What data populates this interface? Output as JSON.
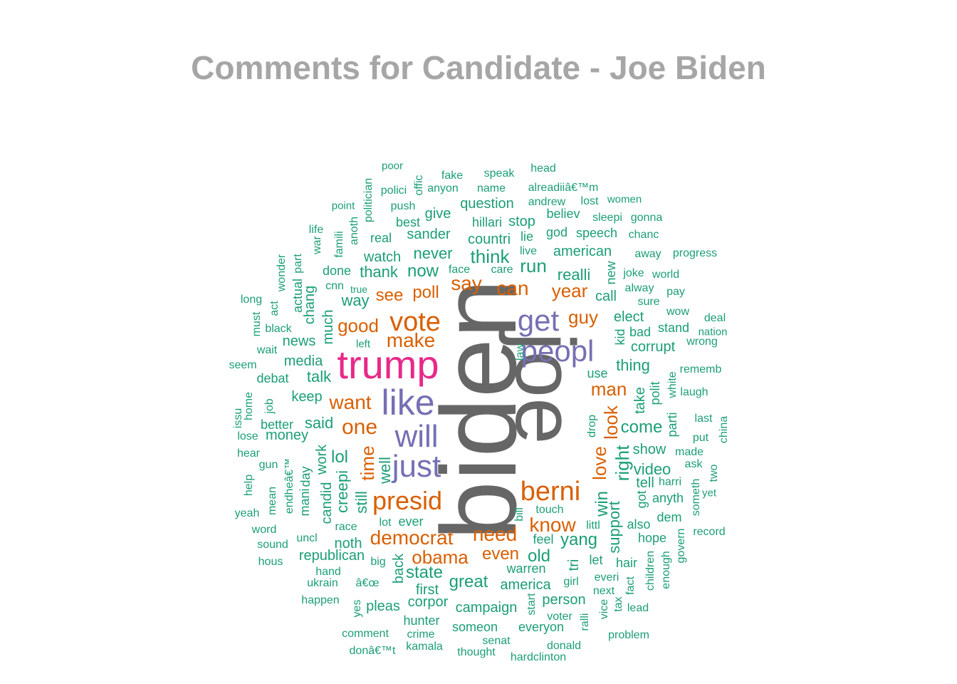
{
  "title": "Comments for Candidate - Joe Biden",
  "colors": {
    "green": "#1b9e77",
    "orange": "#d95f02",
    "purple": "#7570b3",
    "pink": "#e7298a",
    "gray": "#666666",
    "title": "#a6a6a6"
  },
  "words": [
    {
      "text": "biden",
      "c": "gray",
      "s": 150,
      "r": -90
    },
    {
      "text": "joe",
      "c": "gray",
      "s": 118,
      "r": 90
    },
    {
      "text": "trump",
      "c": "pink",
      "s": 56,
      "r": 0
    },
    {
      "text": "like",
      "c": "purple",
      "s": 50,
      "r": 0
    },
    {
      "text": "will",
      "c": "purple",
      "s": 44,
      "r": 0
    },
    {
      "text": "just",
      "c": "purple",
      "s": 44,
      "r": 0
    },
    {
      "text": "peopl",
      "c": "purple",
      "s": 42,
      "r": 0
    },
    {
      "text": "get",
      "c": "purple",
      "s": 42,
      "r": 0
    },
    {
      "text": "vote",
      "c": "orange",
      "s": 38,
      "r": 0
    },
    {
      "text": "berni",
      "c": "orange",
      "s": 38,
      "r": 0
    },
    {
      "text": "presid",
      "c": "orange",
      "s": 36,
      "r": 0
    },
    {
      "text": "make",
      "c": "orange",
      "s": 28,
      "r": 0
    },
    {
      "text": "one",
      "c": "orange",
      "s": 30,
      "r": 0
    },
    {
      "text": "want",
      "c": "orange",
      "s": 28,
      "r": 0
    },
    {
      "text": "good",
      "c": "orange",
      "s": 26,
      "r": 0
    },
    {
      "text": "democrat",
      "c": "orange",
      "s": 28,
      "r": 0
    },
    {
      "text": "say",
      "c": "orange",
      "s": 28,
      "r": 0
    },
    {
      "text": "can",
      "c": "orange",
      "s": 28,
      "r": 0
    },
    {
      "text": "know",
      "c": "orange",
      "s": 28,
      "r": 0
    },
    {
      "text": "need",
      "c": "orange",
      "s": 28,
      "r": 0
    },
    {
      "text": "obama",
      "c": "orange",
      "s": 26,
      "r": 0
    },
    {
      "text": "year",
      "c": "orange",
      "s": 26,
      "r": 0
    },
    {
      "text": "man",
      "c": "orange",
      "s": 26,
      "r": 0
    },
    {
      "text": "guy",
      "c": "orange",
      "s": 26,
      "r": 0
    },
    {
      "text": "poll",
      "c": "orange",
      "s": 24,
      "r": 0
    },
    {
      "text": "see",
      "c": "orange",
      "s": 24,
      "r": 0
    },
    {
      "text": "even",
      "c": "orange",
      "s": 24,
      "r": 0
    },
    {
      "text": "time",
      "c": "orange",
      "s": 26,
      "r": -90
    },
    {
      "text": "love",
      "c": "orange",
      "s": 26,
      "r": -90
    },
    {
      "text": "look",
      "c": "orange",
      "s": 26,
      "r": -90
    },
    {
      "text": "think",
      "c": "green",
      "s": 26,
      "r": 0
    },
    {
      "text": "run",
      "c": "green",
      "s": 26,
      "r": 0
    },
    {
      "text": "lol",
      "c": "green",
      "s": 24,
      "r": 0
    },
    {
      "text": "now",
      "c": "green",
      "s": 24,
      "r": 0
    },
    {
      "text": "never",
      "c": "green",
      "s": 22,
      "r": 0
    },
    {
      "text": "state",
      "c": "green",
      "s": 24,
      "r": 0
    },
    {
      "text": "great",
      "c": "green",
      "s": 24,
      "r": 0
    },
    {
      "text": "old",
      "c": "green",
      "s": 24,
      "r": 0
    },
    {
      "text": "yang",
      "c": "green",
      "s": 24,
      "r": 0
    },
    {
      "text": "right",
      "c": "green",
      "s": 26,
      "r": -90
    },
    {
      "text": "win",
      "c": "green",
      "s": 24,
      "r": -90
    },
    {
      "text": "come",
      "c": "green",
      "s": 24,
      "r": 0
    },
    {
      "text": "video",
      "c": "green",
      "s": 22,
      "r": 0
    },
    {
      "text": "thing",
      "c": "green",
      "s": 22,
      "r": 0
    },
    {
      "text": "way",
      "c": "green",
      "s": 22,
      "r": 0
    },
    {
      "text": "talk",
      "c": "green",
      "s": 22,
      "r": 0
    },
    {
      "text": "thank",
      "c": "green",
      "s": 22,
      "r": 0
    },
    {
      "text": "realli",
      "c": "green",
      "s": 22,
      "r": 0
    },
    {
      "text": "said",
      "c": "green",
      "s": 22,
      "r": 0
    },
    {
      "text": "american",
      "c": "green",
      "s": 20,
      "r": 0
    },
    {
      "text": "america",
      "c": "green",
      "s": 20,
      "r": 0
    },
    {
      "text": "warren",
      "c": "green",
      "s": 18,
      "r": 0
    },
    {
      "text": "creepi",
      "c": "green",
      "s": 22,
      "r": -90
    },
    {
      "text": "still",
      "c": "green",
      "s": 22,
      "r": -90
    },
    {
      "text": "well",
      "c": "green",
      "s": 22,
      "r": -90
    },
    {
      "text": "support",
      "c": "green",
      "s": 22,
      "r": -90
    },
    {
      "text": "call",
      "c": "green",
      "s": 20,
      "r": 0
    },
    {
      "text": "elect",
      "c": "green",
      "s": 20,
      "r": 0
    },
    {
      "text": "tell",
      "c": "green",
      "s": 20,
      "r": 0
    },
    {
      "text": "show",
      "c": "green",
      "s": 20,
      "r": 0
    },
    {
      "text": "keep",
      "c": "green",
      "s": 20,
      "r": 0
    },
    {
      "text": "media",
      "c": "green",
      "s": 20,
      "r": 0
    },
    {
      "text": "news",
      "c": "green",
      "s": 20,
      "r": 0
    },
    {
      "text": "watch",
      "c": "green",
      "s": 20,
      "r": 0
    },
    {
      "text": "sander",
      "c": "green",
      "s": 20,
      "r": 0
    },
    {
      "text": "countri",
      "c": "green",
      "s": 20,
      "r": 0
    },
    {
      "text": "question",
      "c": "green",
      "s": 20,
      "r": 0
    },
    {
      "text": "stop",
      "c": "green",
      "s": 20,
      "r": 0
    },
    {
      "text": "give",
      "c": "green",
      "s": 20,
      "r": 0
    },
    {
      "text": "republican",
      "c": "green",
      "s": 20,
      "r": 0
    },
    {
      "text": "noth",
      "c": "green",
      "s": 20,
      "r": 0
    },
    {
      "text": "ever",
      "c": "green",
      "s": 18,
      "r": 0
    },
    {
      "text": "first",
      "c": "green",
      "s": 20,
      "r": 0
    },
    {
      "text": "corpor",
      "c": "green",
      "s": 20,
      "r": 0
    },
    {
      "text": "pleas",
      "c": "green",
      "s": 20,
      "r": 0
    },
    {
      "text": "campaign",
      "c": "green",
      "s": 20,
      "r": 0
    },
    {
      "text": "person",
      "c": "green",
      "s": 20,
      "r": 0
    },
    {
      "text": "someon",
      "c": "green",
      "s": 18,
      "r": 0
    },
    {
      "text": "everyon",
      "c": "green",
      "s": 18,
      "r": 0
    },
    {
      "text": "hunter",
      "c": "green",
      "s": 18,
      "r": 0
    },
    {
      "text": "money",
      "c": "green",
      "s": 20,
      "r": 0
    },
    {
      "text": "better",
      "c": "green",
      "s": 18,
      "r": 0
    },
    {
      "text": "debat",
      "c": "green",
      "s": 18,
      "r": 0
    },
    {
      "text": "corrupt",
      "c": "green",
      "s": 20,
      "r": 0
    },
    {
      "text": "stand",
      "c": "green",
      "s": 18,
      "r": 0
    },
    {
      "text": "bad",
      "c": "green",
      "s": 18,
      "r": 0
    },
    {
      "text": "use",
      "c": "green",
      "s": 18,
      "r": 0
    },
    {
      "text": "hillari",
      "c": "green",
      "s": 18,
      "r": 0
    },
    {
      "text": "lie",
      "c": "green",
      "s": 18,
      "r": 0
    },
    {
      "text": "live",
      "c": "green",
      "s": 16,
      "r": 0
    },
    {
      "text": "god",
      "c": "green",
      "s": 18,
      "r": 0
    },
    {
      "text": "speech",
      "c": "green",
      "s": 18,
      "r": 0
    },
    {
      "text": "believ",
      "c": "green",
      "s": 18,
      "r": 0
    },
    {
      "text": "best",
      "c": "green",
      "s": 18,
      "r": 0
    },
    {
      "text": "real",
      "c": "green",
      "s": 18,
      "r": 0
    },
    {
      "text": "done",
      "c": "green",
      "s": 18,
      "r": 0
    },
    {
      "text": "face",
      "c": "green",
      "s": 16,
      "r": 0
    },
    {
      "text": "care",
      "c": "green",
      "s": 16,
      "r": 0
    },
    {
      "text": "feel",
      "c": "green",
      "s": 18,
      "r": 0
    },
    {
      "text": "touch",
      "c": "green",
      "s": 16,
      "r": 0
    },
    {
      "text": "littl",
      "c": "green",
      "s": 16,
      "r": 0
    },
    {
      "text": "let",
      "c": "green",
      "s": 18,
      "r": 0
    },
    {
      "text": "hair",
      "c": "green",
      "s": 18,
      "r": 0
    },
    {
      "text": "also",
      "c": "green",
      "s": 18,
      "r": 0
    },
    {
      "text": "hope",
      "c": "green",
      "s": 18,
      "r": 0
    },
    {
      "text": "dem",
      "c": "green",
      "s": 18,
      "r": 0
    },
    {
      "text": "anyth",
      "c": "green",
      "s": 18,
      "r": 0
    },
    {
      "text": "harri",
      "c": "green",
      "s": 16,
      "r": 0
    },
    {
      "text": "made",
      "c": "green",
      "s": 16,
      "r": 0
    },
    {
      "text": "ask",
      "c": "green",
      "s": 16,
      "r": 0
    },
    {
      "text": "put",
      "c": "green",
      "s": 16,
      "r": 0
    },
    {
      "text": "last",
      "c": "green",
      "s": 16,
      "r": 0
    },
    {
      "text": "laugh",
      "c": "green",
      "s": 16,
      "r": 0
    },
    {
      "text": "rememb",
      "c": "green",
      "s": 16,
      "r": 0
    },
    {
      "text": "wrong",
      "c": "green",
      "s": 16,
      "r": 0
    },
    {
      "text": "nation",
      "c": "green",
      "s": 15,
      "r": 0
    },
    {
      "text": "deal",
      "c": "green",
      "s": 16,
      "r": 0
    },
    {
      "text": "wow",
      "c": "green",
      "s": 16,
      "r": 0
    },
    {
      "text": "sure",
      "c": "green",
      "s": 16,
      "r": 0
    },
    {
      "text": "pay",
      "c": "green",
      "s": 16,
      "r": 0
    },
    {
      "text": "alway",
      "c": "green",
      "s": 16,
      "r": 0
    },
    {
      "text": "world",
      "c": "green",
      "s": 16,
      "r": 0
    },
    {
      "text": "joke",
      "c": "green",
      "s": 16,
      "r": 0
    },
    {
      "text": "away",
      "c": "green",
      "s": 16,
      "r": 0
    },
    {
      "text": "progress",
      "c": "green",
      "s": 16,
      "r": 0
    },
    {
      "text": "chanc",
      "c": "green",
      "s": 16,
      "r": 0
    },
    {
      "text": "sleepi",
      "c": "green",
      "s": 16,
      "r": 0
    },
    {
      "text": "gonna",
      "c": "green",
      "s": 16,
      "r": 0
    },
    {
      "text": "women",
      "c": "green",
      "s": 15,
      "r": 0
    },
    {
      "text": "lost",
      "c": "green",
      "s": 16,
      "r": 0
    },
    {
      "text": "andrew",
      "c": "green",
      "s": 16,
      "r": 0
    },
    {
      "text": "alreadiiâ€™m",
      "c": "green",
      "s": 16,
      "r": 0
    },
    {
      "text": "head",
      "c": "green",
      "s": 16,
      "r": 0
    },
    {
      "text": "name",
      "c": "green",
      "s": 16,
      "r": 0
    },
    {
      "text": "speak",
      "c": "green",
      "s": 16,
      "r": 0
    },
    {
      "text": "fake",
      "c": "green",
      "s": 16,
      "r": 0
    },
    {
      "text": "anyon",
      "c": "green",
      "s": 16,
      "r": 0
    },
    {
      "text": "poor",
      "c": "green",
      "s": 15,
      "r": 0
    },
    {
      "text": "polici",
      "c": "green",
      "s": 16,
      "r": 0
    },
    {
      "text": "push",
      "c": "green",
      "s": 16,
      "r": 0
    },
    {
      "text": "point",
      "c": "green",
      "s": 15,
      "r": 0
    },
    {
      "text": "life",
      "c": "green",
      "s": 16,
      "r": 0
    },
    {
      "text": "cnn",
      "c": "green",
      "s": 16,
      "r": 0
    },
    {
      "text": "true",
      "c": "green",
      "s": 14,
      "r": 0
    },
    {
      "text": "long",
      "c": "green",
      "s": 16,
      "r": 0
    },
    {
      "text": "black",
      "c": "green",
      "s": 16,
      "r": 0
    },
    {
      "text": "wait",
      "c": "green",
      "s": 16,
      "r": 0
    },
    {
      "text": "seem",
      "c": "green",
      "s": 16,
      "r": 0
    },
    {
      "text": "left",
      "c": "green",
      "s": 15,
      "r": 0
    },
    {
      "text": "lose",
      "c": "green",
      "s": 16,
      "r": 0
    },
    {
      "text": "hear",
      "c": "green",
      "s": 16,
      "r": 0
    },
    {
      "text": "gun",
      "c": "green",
      "s": 16,
      "r": 0
    },
    {
      "text": "yeah",
      "c": "green",
      "s": 16,
      "r": 0
    },
    {
      "text": "word",
      "c": "green",
      "s": 16,
      "r": 0
    },
    {
      "text": "sound",
      "c": "green",
      "s": 16,
      "r": 0
    },
    {
      "text": "hous",
      "c": "green",
      "s": 16,
      "r": 0
    },
    {
      "text": "uncl",
      "c": "green",
      "s": 16,
      "r": 0
    },
    {
      "text": "race",
      "c": "green",
      "s": 16,
      "r": 0
    },
    {
      "text": "lot",
      "c": "green",
      "s": 16,
      "r": 0
    },
    {
      "text": "big",
      "c": "green",
      "s": 16,
      "r": 0
    },
    {
      "text": "hand",
      "c": "green",
      "s": 16,
      "r": 0
    },
    {
      "text": "ukrain",
      "c": "green",
      "s": 16,
      "r": 0
    },
    {
      "text": "â€œ",
      "c": "green",
      "s": 16,
      "r": 0
    },
    {
      "text": "happen",
      "c": "green",
      "s": 16,
      "r": 0
    },
    {
      "text": "comment",
      "c": "green",
      "s": 16,
      "r": 0
    },
    {
      "text": "crime",
      "c": "green",
      "s": 16,
      "r": 0
    },
    {
      "text": "donâ€™t",
      "c": "green",
      "s": 16,
      "r": 0
    },
    {
      "text": "kamala",
      "c": "green",
      "s": 16,
      "r": 0
    },
    {
      "text": "senat",
      "c": "green",
      "s": 16,
      "r": 0
    },
    {
      "text": "thought",
      "c": "green",
      "s": 16,
      "r": 0
    },
    {
      "text": "hardclinton",
      "c": "green",
      "s": 16,
      "r": 0
    },
    {
      "text": "donald",
      "c": "green",
      "s": 16,
      "r": 0
    },
    {
      "text": "voter",
      "c": "green",
      "s": 16,
      "r": 0
    },
    {
      "text": "girl",
      "c": "green",
      "s": 16,
      "r": 0
    },
    {
      "text": "everi",
      "c": "green",
      "s": 16,
      "r": 0
    },
    {
      "text": "next",
      "c": "green",
      "s": 16,
      "r": 0
    },
    {
      "text": "lead",
      "c": "green",
      "s": 16,
      "r": 0
    },
    {
      "text": "problem",
      "c": "green",
      "s": 16,
      "r": 0
    },
    {
      "text": "record",
      "c": "green",
      "s": 16,
      "r": 0
    },
    {
      "text": "yet",
      "c": "green",
      "s": 15,
      "r": 0
    },
    {
      "text": "polit",
      "c": "green",
      "s": 18,
      "r": -90
    },
    {
      "text": "take",
      "c": "green",
      "s": 20,
      "r": -90
    },
    {
      "text": "kid",
      "c": "green",
      "s": 18,
      "r": -90
    },
    {
      "text": "new",
      "c": "green",
      "s": 18,
      "r": -90
    },
    {
      "text": "drop",
      "c": "green",
      "s": 16,
      "r": -90
    },
    {
      "text": "law",
      "c": "green",
      "s": 16,
      "r": -90
    },
    {
      "text": "bill",
      "c": "green",
      "s": 16,
      "r": -90
    },
    {
      "text": "got",
      "c": "green",
      "s": 18,
      "r": -90
    },
    {
      "text": "tri",
      "c": "green",
      "s": 20,
      "r": -90
    },
    {
      "text": "back",
      "c": "green",
      "s": 20,
      "r": -90
    },
    {
      "text": "start",
      "c": "green",
      "s": 16,
      "r": -90
    },
    {
      "text": "ralli",
      "c": "green",
      "s": 16,
      "r": -90
    },
    {
      "text": "vice",
      "c": "green",
      "s": 16,
      "r": -90
    },
    {
      "text": "tax",
      "c": "green",
      "s": 16,
      "r": -90
    },
    {
      "text": "fact",
      "c": "green",
      "s": 16,
      "r": -90
    },
    {
      "text": "children",
      "c": "green",
      "s": 16,
      "r": -90
    },
    {
      "text": "enough",
      "c": "green",
      "s": 16,
      "r": -90
    },
    {
      "text": "govern",
      "c": "green",
      "s": 16,
      "r": -90
    },
    {
      "text": "someth",
      "c": "green",
      "s": 16,
      "r": -90
    },
    {
      "text": "two",
      "c": "green",
      "s": 16,
      "r": -90
    },
    {
      "text": "china",
      "c": "green",
      "s": 16,
      "r": -90
    },
    {
      "text": "parti",
      "c": "green",
      "s": 18,
      "r": -90
    },
    {
      "text": "white",
      "c": "green",
      "s": 16,
      "r": -90
    },
    {
      "text": "much",
      "c": "green",
      "s": 20,
      "r": -90
    },
    {
      "text": "chang",
      "c": "green",
      "s": 20,
      "r": -90
    },
    {
      "text": "actual",
      "c": "green",
      "s": 18,
      "r": -90
    },
    {
      "text": "act",
      "c": "green",
      "s": 16,
      "r": -90
    },
    {
      "text": "must",
      "c": "green",
      "s": 16,
      "r": -90
    },
    {
      "text": "wonder",
      "c": "green",
      "s": 16,
      "r": -90
    },
    {
      "text": "part",
      "c": "green",
      "s": 16,
      "r": -90
    },
    {
      "text": "war",
      "c": "green",
      "s": 16,
      "r": -90
    },
    {
      "text": "famili",
      "c": "green",
      "s": 16,
      "r": -90
    },
    {
      "text": "anoth",
      "c": "green",
      "s": 16,
      "r": -90
    },
    {
      "text": "politician",
      "c": "green",
      "s": 16,
      "r": -90
    },
    {
      "text": "offic",
      "c": "green",
      "s": 16,
      "r": -90
    },
    {
      "text": "issu",
      "c": "green",
      "s": 16,
      "r": -90
    },
    {
      "text": "home",
      "c": "green",
      "s": 16,
      "r": -90
    },
    {
      "text": "job",
      "c": "green",
      "s": 16,
      "r": -90
    },
    {
      "text": "help",
      "c": "green",
      "s": 16,
      "r": -90
    },
    {
      "text": "mean",
      "c": "green",
      "s": 16,
      "r": -90
    },
    {
      "text": "endheâ€™",
      "c": "green",
      "s": 16,
      "r": -90
    },
    {
      "text": "mani",
      "c": "green",
      "s": 18,
      "r": -90
    },
    {
      "text": "day",
      "c": "green",
      "s": 18,
      "r": -90
    },
    {
      "text": "work",
      "c": "green",
      "s": 20,
      "r": -90
    },
    {
      "text": "candid",
      "c": "green",
      "s": 20,
      "r": -90
    },
    {
      "text": "yes",
      "c": "green",
      "s": 16,
      "r": -90
    }
  ]
}
